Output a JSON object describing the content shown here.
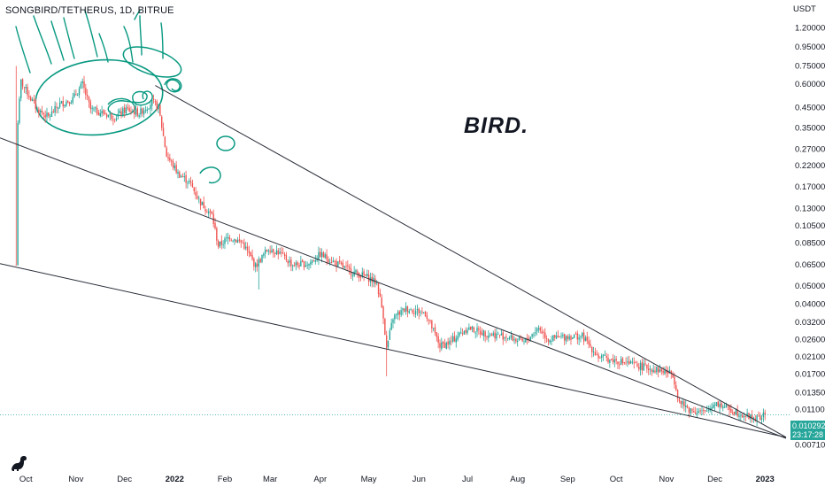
{
  "header": {
    "symbol": "SONGBIRD/TETHERUS",
    "interval": "1D",
    "exchange": "BITRUE",
    "separator": ", "
  },
  "annotation_text": "BIRD.",
  "colors": {
    "up": "#26a69a",
    "down": "#ef5350",
    "trendline": "#2a2e39",
    "drawing": "#089981",
    "axis_text": "#131722"
  },
  "price_tag": {
    "price": "0.010292",
    "countdown": "23:17:28"
  },
  "logo_icon": "tradingview-dinosaur-icon",
  "chart_data": {
    "type": "candlestick",
    "y_unit": "USDT",
    "y_scale": "log",
    "ylim": [
      0.0064,
      1.45
    ],
    "y_ticks": [
      {
        "value": 1.2,
        "label": "1.200000"
      },
      {
        "value": 0.95,
        "label": "0.950000"
      },
      {
        "value": 0.75,
        "label": "0.750000"
      },
      {
        "value": 0.6,
        "label": "0.600000"
      },
      {
        "value": 0.45,
        "label": "0.450000"
      },
      {
        "value": 0.35,
        "label": "0.350000"
      },
      {
        "value": 0.27,
        "label": "0.270000"
      },
      {
        "value": 0.22,
        "label": "0.220000"
      },
      {
        "value": 0.17,
        "label": "0.170000"
      },
      {
        "value": 0.13,
        "label": "0.130000"
      },
      {
        "value": 0.105,
        "label": "0.105000"
      },
      {
        "value": 0.085,
        "label": "0.085000"
      },
      {
        "value": 0.065,
        "label": "0.065000"
      },
      {
        "value": 0.05,
        "label": "0.050000"
      },
      {
        "value": 0.04,
        "label": "0.040000"
      },
      {
        "value": 0.032,
        "label": "0.032000"
      },
      {
        "value": 0.026,
        "label": "0.026000"
      },
      {
        "value": 0.021,
        "label": "0.021000"
      },
      {
        "value": 0.017,
        "label": "0.017000"
      },
      {
        "value": 0.0135,
        "label": "0.013500"
      },
      {
        "value": 0.011,
        "label": "0.011000"
      },
      {
        "value": 0.0087,
        "label": "0.008700"
      },
      {
        "value": 0.0071,
        "label": "0.007100"
      }
    ],
    "x_ticks": [
      {
        "label": "Oct",
        "year": false
      },
      {
        "label": "Nov",
        "year": false
      },
      {
        "label": "Dec",
        "year": false
      },
      {
        "label": "2022",
        "year": true
      },
      {
        "label": "Feb",
        "year": false
      },
      {
        "label": "Mar",
        "year": false
      },
      {
        "label": "Apr",
        "year": false
      },
      {
        "label": "May",
        "year": false
      },
      {
        "label": "Jun",
        "year": false
      },
      {
        "label": "Jul",
        "year": false
      },
      {
        "label": "Aug",
        "year": false
      },
      {
        "label": "Sep",
        "year": false
      },
      {
        "label": "Oct",
        "year": false
      },
      {
        "label": "Nov",
        "year": false
      },
      {
        "label": "Dec",
        "year": false
      },
      {
        "label": "2023",
        "year": true
      }
    ],
    "xlim": [
      "2021-09-15",
      "2023-01-14"
    ],
    "x_tick_dates": [
      "2021-10-01",
      "2021-11-01",
      "2021-12-01",
      "2022-01-01",
      "2022-02-01",
      "2022-03-01",
      "2022-04-01",
      "2022-05-01",
      "2022-06-01",
      "2022-07-01",
      "2022-08-01",
      "2022-09-01",
      "2022-10-01",
      "2022-11-01",
      "2022-12-01",
      "2023-01-01"
    ],
    "close_path": [
      [
        "2021-09-25",
        0.065
      ],
      [
        "2021-09-26",
        0.38
      ],
      [
        "2021-09-28",
        0.62
      ],
      [
        "2021-10-03",
        0.52
      ],
      [
        "2021-10-08",
        0.44
      ],
      [
        "2021-10-15",
        0.4
      ],
      [
        "2021-10-22",
        0.47
      ],
      [
        "2021-10-30",
        0.5
      ],
      [
        "2021-11-05",
        0.6
      ],
      [
        "2021-11-10",
        0.44
      ],
      [
        "2021-11-18",
        0.42
      ],
      [
        "2021-11-25",
        0.4
      ],
      [
        "2021-12-02",
        0.44
      ],
      [
        "2021-12-10",
        0.42
      ],
      [
        "2021-12-18",
        0.48
      ],
      [
        "2021-12-22",
        0.45
      ],
      [
        "2021-12-27",
        0.25
      ],
      [
        "2022-01-03",
        0.2
      ],
      [
        "2022-01-10",
        0.18
      ],
      [
        "2022-01-17",
        0.14
      ],
      [
        "2022-01-24",
        0.12
      ],
      [
        "2022-01-28",
        0.082
      ],
      [
        "2022-02-04",
        0.092
      ],
      [
        "2022-02-12",
        0.085
      ],
      [
        "2022-02-20",
        0.064
      ],
      [
        "2022-02-28",
        0.08
      ],
      [
        "2022-03-06",
        0.076
      ],
      [
        "2022-03-15",
        0.065
      ],
      [
        "2022-03-25",
        0.066
      ],
      [
        "2022-04-01",
        0.074
      ],
      [
        "2022-04-10",
        0.067
      ],
      [
        "2022-04-20",
        0.06
      ],
      [
        "2022-04-30",
        0.056
      ],
      [
        "2022-05-06",
        0.052
      ],
      [
        "2022-05-10",
        0.035
      ],
      [
        "2022-05-12",
        0.023
      ],
      [
        "2022-05-16",
        0.034
      ],
      [
        "2022-05-24",
        0.038
      ],
      [
        "2022-06-05",
        0.036
      ],
      [
        "2022-06-14",
        0.024
      ],
      [
        "2022-06-20",
        0.025
      ],
      [
        "2022-07-01",
        0.03
      ],
      [
        "2022-07-12",
        0.028
      ],
      [
        "2022-07-25",
        0.027
      ],
      [
        "2022-08-05",
        0.025
      ],
      [
        "2022-08-14",
        0.03
      ],
      [
        "2022-08-20",
        0.026
      ],
      [
        "2022-09-01",
        0.027
      ],
      [
        "2022-09-10",
        0.027
      ],
      [
        "2022-09-20",
        0.021
      ],
      [
        "2022-10-01",
        0.02
      ],
      [
        "2022-10-12",
        0.019
      ],
      [
        "2022-10-25",
        0.018
      ],
      [
        "2022-11-05",
        0.017
      ],
      [
        "2022-11-09",
        0.012
      ],
      [
        "2022-11-15",
        0.011
      ],
      [
        "2022-11-25",
        0.0105
      ],
      [
        "2022-12-01",
        0.012
      ],
      [
        "2022-12-10",
        0.011
      ],
      [
        "2022-12-20",
        0.0102
      ],
      [
        "2022-12-28",
        0.0098
      ],
      [
        "2023-01-01",
        0.010292
      ]
    ],
    "trendlines": [
      {
        "from": [
          "2021-09-15",
          0.31
        ],
        "to": [
          "2023-01-14",
          0.0077
        ]
      },
      {
        "from": [
          "2021-12-20",
          0.59
        ],
        "to": [
          "2023-01-14",
          0.0078
        ]
      },
      {
        "from": [
          "2021-09-15",
          0.066
        ],
        "to": [
          "2023-01-14",
          0.0078
        ]
      }
    ],
    "last_price": 0.010292
  }
}
